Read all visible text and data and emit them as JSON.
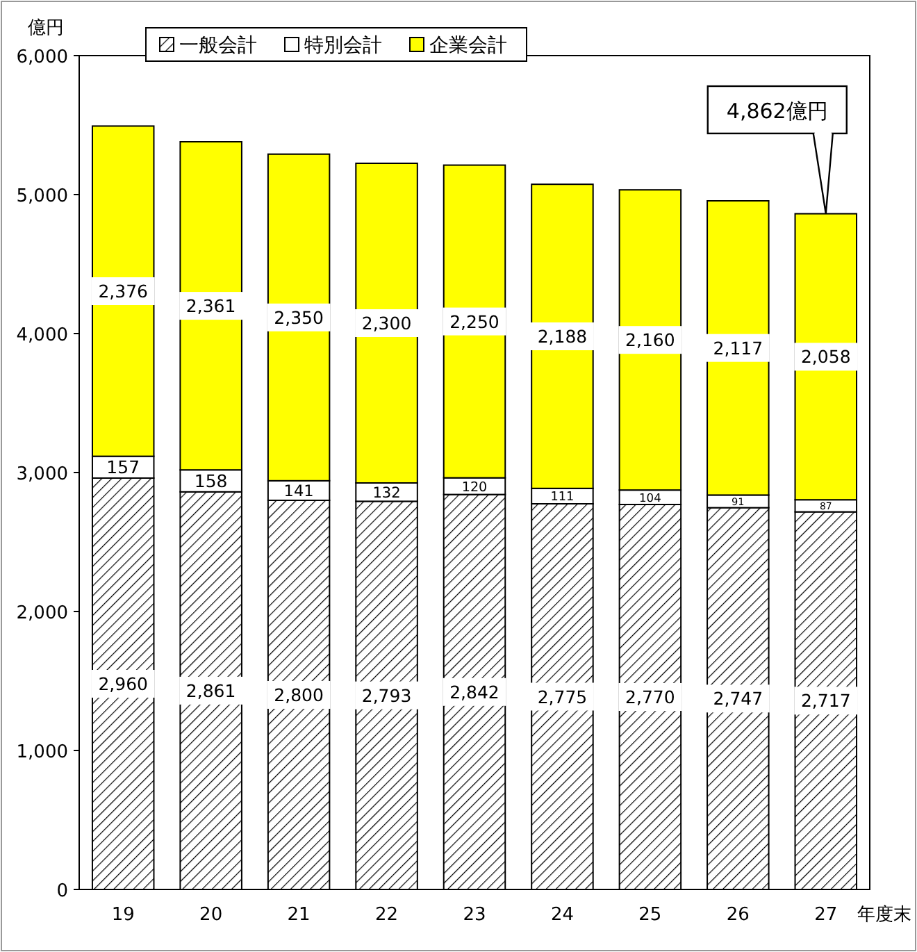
{
  "chart_data": {
    "type": "bar",
    "stacked": true,
    "ylabel": "億円",
    "xlabel": "年度末",
    "categories": [
      "19",
      "20",
      "21",
      "22",
      "23",
      "24",
      "25",
      "26",
      "27"
    ],
    "series": [
      {
        "name": "一般会計",
        "color": "#000000",
        "values": [
          2960,
          2861,
          2800,
          2793,
          2842,
          2775,
          2770,
          2747,
          2717
        ],
        "value_labels": [
          "2,960",
          "2,861",
          "2,800",
          "2,793",
          "2,842",
          "2,775",
          "2,770",
          "2,747",
          "2,717"
        ]
      },
      {
        "name": "特別会計",
        "color": "#ffffff",
        "values": [
          157,
          158,
          141,
          132,
          120,
          111,
          104,
          91,
          87
        ],
        "value_labels": [
          "157",
          "158",
          "141",
          "132",
          "120",
          "111",
          "104",
          "91",
          "87"
        ]
      },
      {
        "name": "企業会計",
        "color": "#ffff00",
        "values": [
          2376,
          2361,
          2350,
          2300,
          2250,
          2188,
          2160,
          2117,
          2058
        ],
        "value_labels": [
          "2,376",
          "2,361",
          "2,350",
          "2,300",
          "2,250",
          "2,188",
          "2,160",
          "2,117",
          "2,058"
        ]
      }
    ],
    "ylim": [
      0,
      6000
    ],
    "yticks": [
      {
        "value": 0,
        "label": "0"
      },
      {
        "value": 1000,
        "label": "1,000"
      },
      {
        "value": 2000,
        "label": "2,000"
      },
      {
        "value": 3000,
        "label": "3,000"
      },
      {
        "value": 4000,
        "label": "4,000"
      },
      {
        "value": 5000,
        "label": "5,000"
      },
      {
        "value": 6000,
        "label": "6,000"
      }
    ],
    "legend": "top",
    "grid": false,
    "annotations": [
      {
        "text": "4,862億円",
        "x": "27",
        "y": 4862
      }
    ]
  }
}
